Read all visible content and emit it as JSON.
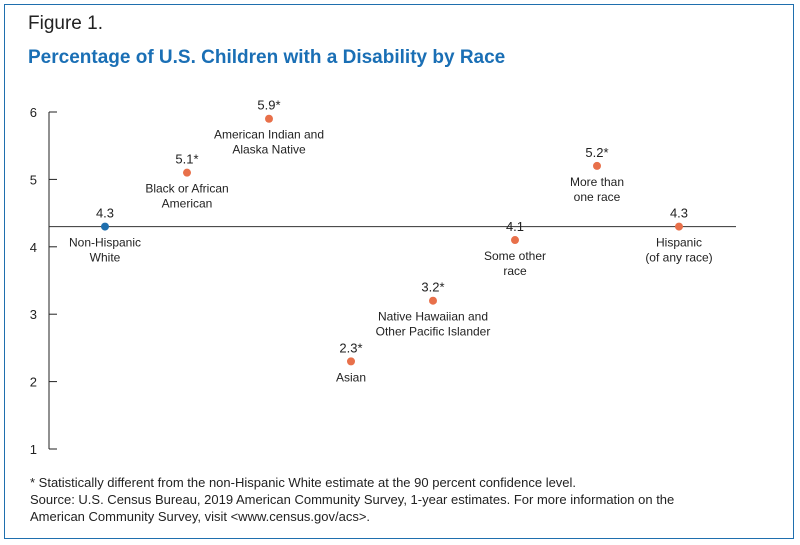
{
  "figure_label": "Figure 1.",
  "title": "Percentage of U.S. Children with a Disability by Race",
  "colors": {
    "title": "#1a6fb5",
    "reference": "#1f6fae",
    "points": "#e8704a",
    "axis": "#222222"
  },
  "chart_data": {
    "type": "scatter",
    "title": "Percentage of U.S. Children with a Disability by Race",
    "ylim": [
      1,
      6
    ],
    "yticks": [
      "1",
      "2",
      "3",
      "4",
      "5",
      "6"
    ],
    "reference_line": 4.3,
    "grid": false,
    "points": [
      {
        "label_lines": [
          "Non-Hispanic",
          "White"
        ],
        "value": 4.3,
        "value_label": "4.3",
        "reference": true,
        "label_pos": "below"
      },
      {
        "label_lines": [
          "Black or African",
          "American"
        ],
        "value": 5.1,
        "value_label": "5.1*",
        "reference": false,
        "label_pos": "below"
      },
      {
        "label_lines": [
          "American Indian and",
          "Alaska Native"
        ],
        "value": 5.9,
        "value_label": "5.9*",
        "reference": false,
        "label_pos": "below"
      },
      {
        "label_lines": [
          "Asian"
        ],
        "value": 2.3,
        "value_label": "2.3*",
        "reference": false,
        "label_pos": "below"
      },
      {
        "label_lines": [
          "Native Hawaiian and",
          "Other Pacific Islander"
        ],
        "value": 3.2,
        "value_label": "3.2*",
        "reference": false,
        "label_pos": "below"
      },
      {
        "label_lines": [
          "Some other",
          "race"
        ],
        "value": 4.1,
        "value_label": "4.1",
        "reference": false,
        "label_pos": "below"
      },
      {
        "label_lines": [
          "More than",
          "one race"
        ],
        "value": 5.2,
        "value_label": "5.2*",
        "reference": false,
        "label_pos": "below"
      },
      {
        "label_lines": [
          "Hispanic",
          "(of any race)"
        ],
        "value": 4.3,
        "value_label": "4.3",
        "reference": false,
        "label_pos": "below"
      }
    ]
  },
  "notes": {
    "footnote": "* Statistically different from the non-Hispanic White estimate at the 90 percent confidence level.",
    "source_line1": "Source: U.S. Census Bureau, 2019 American Community Survey, 1-year estimates. For more information on the",
    "source_line2": "American Community Survey, visit <www.census.gov/acs>."
  }
}
